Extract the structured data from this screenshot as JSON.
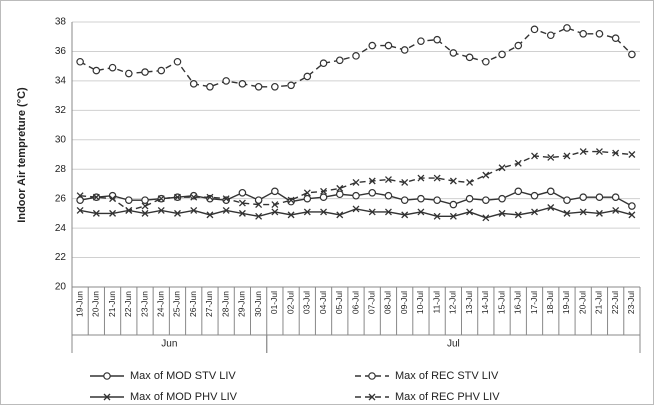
{
  "chart_data": {
    "type": "line",
    "y_label": "Indoor Air tempreture (°C)",
    "groups": [
      {
        "name": "Jun",
        "categories": [
          "19-Jun",
          "20-Jun",
          "21-Jun",
          "22-Jun",
          "23-Jun",
          "24-Jun",
          "25-Jun",
          "26-Jun",
          "27-Jun",
          "28-Jun",
          "29-Jun",
          "30-Jun"
        ]
      },
      {
        "name": "Jul",
        "categories": [
          "01-Jul",
          "02-Jul",
          "03-Jul",
          "04-Jul",
          "05-Jul",
          "06-Jul",
          "07-Jul",
          "08-Jul",
          "09-Jul",
          "10-Jul",
          "11-Jul",
          "12-Jul",
          "13-Jul",
          "14-Jul",
          "15-Jul",
          "16-Jul",
          "17-Jul",
          "18-Jul",
          "19-Jul",
          "20-Jul",
          "21-Jul",
          "22-Jul",
          "23-Jul"
        ]
      }
    ],
    "ylim": [
      20,
      38
    ],
    "yticks": [
      20,
      22,
      24,
      26,
      28,
      30,
      32,
      34,
      36,
      38
    ],
    "grid": true,
    "series": [
      {
        "name": "Max of MOD STV LIV",
        "color": "#333333",
        "dash": false,
        "marker": "circle",
        "values": [
          25.9,
          26.1,
          26.2,
          25.9,
          25.9,
          26.0,
          26.1,
          26.2,
          26.0,
          25.9,
          26.4,
          25.9,
          26.5,
          25.8,
          26.0,
          26.1,
          26.3,
          26.2,
          26.4,
          26.2,
          25.9,
          26.0,
          25.9,
          25.6,
          26.0,
          25.9,
          26.0,
          26.5,
          26.2,
          26.5,
          25.9,
          26.1,
          26.1,
          26.1,
          25.5
        ]
      },
      {
        "name": "Max of REC STV LIV",
        "color": "#333333",
        "dash": true,
        "marker": "circle",
        "values": [
          35.3,
          34.7,
          34.9,
          34.5,
          34.6,
          34.7,
          35.3,
          33.8,
          33.6,
          34.0,
          33.8,
          33.6,
          33.6,
          33.7,
          34.3,
          35.2,
          35.4,
          35.7,
          36.4,
          36.4,
          36.1,
          36.7,
          36.8,
          35.9,
          35.6,
          35.3,
          35.8,
          36.4,
          37.5,
          37.1,
          37.6,
          37.2,
          37.2,
          36.9,
          35.8
        ]
      },
      {
        "name": "Max of MOD  PHV LIV",
        "color": "#333333",
        "dash": false,
        "marker": "x",
        "values": [
          25.2,
          25.0,
          25.0,
          25.2,
          25.0,
          25.2,
          25.0,
          25.2,
          24.9,
          25.2,
          25.0,
          24.8,
          25.1,
          24.9,
          25.1,
          25.1,
          24.9,
          25.3,
          25.1,
          25.1,
          24.9,
          25.1,
          24.8,
          24.8,
          25.1,
          24.7,
          25.0,
          24.9,
          25.1,
          25.4,
          25.0,
          25.1,
          25.0,
          25.2,
          24.9
        ]
      },
      {
        "name": "Max of REC PHV LIV",
        "color": "#333333",
        "dash": true,
        "marker": "x",
        "values": [
          26.2,
          26.1,
          26.0,
          25.2,
          25.5,
          26.0,
          26.1,
          26.1,
          26.1,
          26.0,
          25.7,
          25.6,
          25.6,
          25.9,
          26.4,
          26.5,
          26.7,
          27.1,
          27.2,
          27.3,
          27.1,
          27.4,
          27.4,
          27.2,
          27.1,
          27.6,
          28.1,
          28.4,
          28.9,
          28.8,
          28.9,
          29.2,
          29.2,
          29.1,
          29.0
        ]
      }
    ]
  }
}
